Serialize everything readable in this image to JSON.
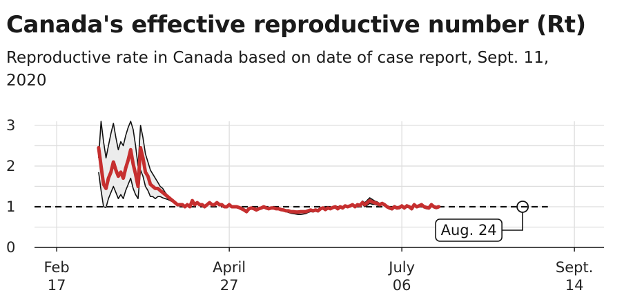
{
  "title": "Canada's effective reproductive number (Rt)",
  "subtitle": "Reproductive rate in Canada based on date of case report, Sept. 11, 2020",
  "chart_data": {
    "type": "line",
    "x_start_date": "2020-03-05",
    "x_tick_labels": [
      {
        "date": "2020-02-17",
        "line1": "Feb",
        "line2": "17"
      },
      {
        "date": "2020-04-27",
        "line1": "April",
        "line2": "27"
      },
      {
        "date": "2020-07-06",
        "line1": "July",
        "line2": "06"
      },
      {
        "date": "2020-09-14",
        "line1": "Sept.",
        "line2": "14"
      }
    ],
    "y_ticks": [
      0,
      1,
      2,
      3
    ],
    "xlim": [
      "2020-02-08",
      "2020-09-26"
    ],
    "ylim": [
      0,
      3.1
    ],
    "grid": true,
    "reference_line": {
      "value": 1,
      "style": "dashed",
      "until": "2020-09-01"
    },
    "annotation": {
      "label": "Aug. 24",
      "date": "2020-08-24",
      "value": 1.0
    },
    "series": [
      {
        "color": "#c62f2f",
        "role": "estimate",
        "values": [
          2.45,
          2.0,
          1.55,
          1.45,
          1.7,
          1.85,
          2.1,
          1.9,
          1.75,
          1.85,
          1.7,
          1.95,
          2.15,
          2.4,
          2.05,
          1.8,
          1.5,
          2.45,
          2.2,
          1.85,
          1.75,
          1.55,
          1.5,
          1.45,
          1.45,
          1.4,
          1.35,
          1.3,
          1.25,
          1.2,
          1.15,
          1.1,
          1.05,
          1.05,
          1.05,
          1.0,
          1.05,
          1.0,
          1.15,
          1.05,
          1.1,
          1.05,
          1.05,
          1.0,
          1.05,
          1.1,
          1.05,
          1.05,
          1.1,
          1.05,
          1.05,
          1.0,
          1.0,
          1.05,
          1.0,
          1.0,
          1.0,
          0.98,
          0.95,
          0.92,
          0.88,
          0.95,
          0.97,
          0.95,
          0.92,
          0.95,
          0.97,
          1.0,
          0.97,
          0.95,
          0.97,
          0.97,
          0.95,
          0.95,
          0.93,
          0.92,
          0.9,
          0.9,
          0.88,
          0.88,
          0.87,
          0.87,
          0.88,
          0.88,
          0.88,
          0.9,
          0.92,
          0.9,
          0.92,
          0.9,
          0.95,
          0.97,
          0.93,
          0.97,
          0.95,
          0.98,
          1.0,
          0.95,
          1.0,
          0.97,
          1.02,
          1.0,
          1.02,
          1.05,
          1.0,
          1.05,
          1.03,
          1.1,
          1.05,
          1.1,
          1.15,
          1.12,
          1.1,
          1.08,
          1.05,
          1.08,
          1.05,
          1.0,
          0.97,
          0.95,
          1.0,
          0.97,
          0.98,
          1.02,
          0.97,
          1.02,
          1.0,
          0.95,
          1.05,
          1.0,
          1.02,
          1.05,
          1.0,
          0.98,
          0.97,
          1.05,
          1.0,
          0.98,
          1.0
        ]
      },
      {
        "color": "#111111",
        "role": "upper-bound",
        "values": [
          2.2,
          3.1,
          2.6,
          2.2,
          2.5,
          2.8,
          3.05,
          2.7,
          2.4,
          2.6,
          2.5,
          2.75,
          2.95,
          3.1,
          2.9,
          2.5,
          2.0,
          3.0,
          2.7,
          2.3,
          2.1,
          1.9,
          1.8,
          1.7,
          1.6,
          1.5,
          1.45,
          1.35,
          1.28,
          1.22,
          1.17,
          1.12,
          1.08,
          1.07,
          1.07,
          1.02,
          1.07,
          1.02,
          1.17,
          1.07,
          1.12,
          1.07,
          1.07,
          1.02,
          1.07,
          1.12,
          1.07,
          1.07,
          1.12,
          1.07,
          1.07,
          1.02,
          1.02,
          1.07,
          1.02,
          1.02,
          1.02,
          1.0,
          0.97,
          0.94,
          0.9,
          0.97,
          0.99,
          0.97,
          0.94,
          0.97,
          0.99,
          1.02,
          0.99,
          0.97,
          0.99,
          0.99,
          0.97,
          0.97,
          0.95,
          0.94,
          0.92,
          0.92,
          0.9,
          0.9,
          0.89,
          0.89,
          0.9,
          0.9,
          0.9,
          0.92,
          0.94,
          0.92,
          0.94,
          0.92,
          0.97,
          0.99,
          0.95,
          0.99,
          0.97,
          1.0,
          1.02,
          0.97,
          1.02,
          0.99,
          1.04,
          1.02,
          1.04,
          1.07,
          1.02,
          1.07,
          1.05,
          1.14,
          1.1,
          1.16,
          1.22,
          1.18,
          1.14,
          1.12,
          1.08,
          1.11,
          1.08,
          1.03,
          1.0,
          0.98,
          1.03,
          1.0,
          1.01,
          1.05,
          1.0,
          1.05,
          1.03,
          0.98,
          1.08,
          1.03,
          1.05,
          1.08,
          1.03,
          1.01,
          1.0,
          1.08,
          1.03,
          1.01,
          1.03
        ]
      },
      {
        "color": "#111111",
        "role": "lower-bound",
        "values": [
          1.85,
          1.4,
          1.0,
          0.98,
          1.2,
          1.35,
          1.5,
          1.35,
          1.2,
          1.3,
          1.2,
          1.4,
          1.55,
          1.7,
          1.45,
          1.3,
          1.2,
          1.9,
          1.75,
          1.5,
          1.4,
          1.25,
          1.25,
          1.2,
          1.25,
          1.25,
          1.22,
          1.2,
          1.18,
          1.15,
          1.12,
          1.08,
          1.02,
          1.03,
          1.03,
          0.98,
          1.03,
          0.98,
          1.13,
          1.03,
          1.08,
          1.03,
          1.03,
          0.98,
          1.03,
          1.08,
          1.03,
          1.03,
          1.08,
          1.03,
          1.03,
          0.98,
          0.98,
          1.03,
          0.98,
          0.98,
          0.98,
          0.96,
          0.93,
          0.9,
          0.86,
          0.93,
          0.95,
          0.93,
          0.9,
          0.93,
          0.95,
          0.98,
          0.95,
          0.93,
          0.95,
          0.95,
          0.93,
          0.93,
          0.91,
          0.9,
          0.88,
          0.86,
          0.84,
          0.83,
          0.82,
          0.81,
          0.81,
          0.82,
          0.83,
          0.86,
          0.88,
          0.87,
          0.89,
          0.87,
          0.93,
          0.95,
          0.91,
          0.95,
          0.93,
          0.96,
          0.98,
          0.93,
          0.98,
          0.95,
          1.0,
          0.98,
          1.0,
          1.03,
          0.98,
          1.03,
          1.01,
          1.06,
          1.0,
          1.04,
          1.08,
          1.06,
          1.06,
          1.04,
          1.02,
          1.05,
          1.02,
          0.97,
          0.94,
          0.92,
          0.97,
          0.94,
          0.95,
          0.99,
          0.94,
          0.99,
          0.97,
          0.92,
          1.02,
          0.97,
          0.99,
          1.02,
          0.97,
          0.95,
          0.94,
          1.02,
          0.97,
          0.95,
          0.97
        ]
      }
    ]
  }
}
